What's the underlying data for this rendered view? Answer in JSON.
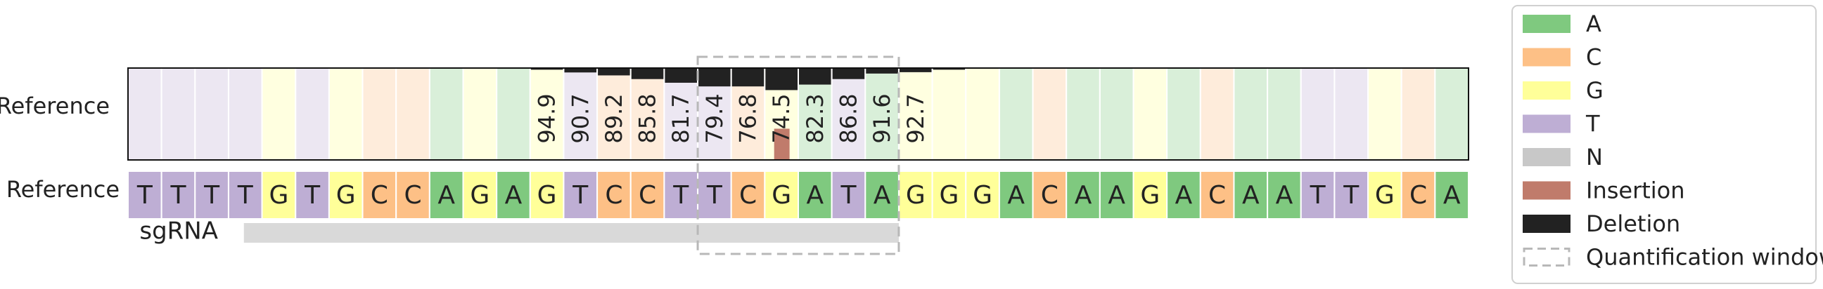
{
  "chart_data": {
    "type": "heatmap",
    "row_labels": [
      "Reference",
      "Reference"
    ],
    "sgrna_label": "sgRNA",
    "reference_sequence": [
      "T",
      "T",
      "T",
      "T",
      "G",
      "T",
      "G",
      "C",
      "C",
      "A",
      "G",
      "A",
      "G",
      "T",
      "C",
      "C",
      "T",
      "T",
      "C",
      "G",
      "A",
      "T",
      "A",
      "G",
      "G",
      "G",
      "A",
      "C",
      "A",
      "A",
      "G",
      "A",
      "C",
      "A",
      "A",
      "T",
      "T",
      "G",
      "C",
      "A"
    ],
    "percent_labels": [
      null,
      null,
      null,
      null,
      null,
      null,
      null,
      null,
      null,
      null,
      null,
      null,
      "94.9",
      "90.7",
      "89.2",
      "85.8",
      "81.7",
      "79.4",
      "76.8",
      "74.5",
      "82.3",
      "86.8",
      "91.6",
      "92.7",
      null,
      null,
      null,
      null,
      null,
      null,
      null,
      null,
      null,
      null,
      null,
      null,
      null,
      null,
      null,
      null
    ],
    "deletion_percent": [
      0,
      0,
      0,
      0,
      0,
      0,
      0,
      0.3,
      0.3,
      0.3,
      0.5,
      0.8,
      1.8,
      4.8,
      8,
      12,
      16,
      20,
      20,
      24,
      18,
      12,
      6,
      4.5,
      1.8,
      0.8,
      0,
      0.6,
      0,
      0,
      0.3,
      0,
      0,
      0,
      0,
      0,
      0,
      0,
      0,
      0
    ],
    "insertion_percent": [
      0,
      0,
      0,
      0,
      0,
      0,
      0,
      0,
      0,
      0,
      0,
      0,
      0,
      0,
      0,
      0,
      0,
      0,
      0,
      34,
      0,
      0,
      0,
      0,
      0,
      0,
      0,
      0,
      0,
      0,
      0,
      0,
      0,
      0,
      0,
      0,
      0,
      0,
      0,
      0
    ],
    "quantification_window": {
      "start_index": 17,
      "end_index": 22
    },
    "sgrna": {
      "start_index": 3,
      "end_index": 22
    },
    "colors": {
      "A": "#7fc97f",
      "C": "#fdc086",
      "G": "#ffff99",
      "T": "#beaed4",
      "N": "#c8c8c8",
      "Insertion": "#c07b6b",
      "Deletion": "#222222",
      "window": "#b8b8b8",
      "sgrna_bar": "#d9d9d9"
    },
    "legend": {
      "placement": "right",
      "items": [
        {
          "label": "A",
          "kind": "A"
        },
        {
          "label": "C",
          "kind": "C"
        },
        {
          "label": "G",
          "kind": "G"
        },
        {
          "label": "T",
          "kind": "T"
        },
        {
          "label": "N",
          "kind": "N"
        },
        {
          "label": "Insertion",
          "kind": "Insertion"
        },
        {
          "label": "Deletion",
          "kind": "Deletion"
        },
        {
          "label": "Quantification window",
          "kind": "window"
        }
      ]
    }
  }
}
